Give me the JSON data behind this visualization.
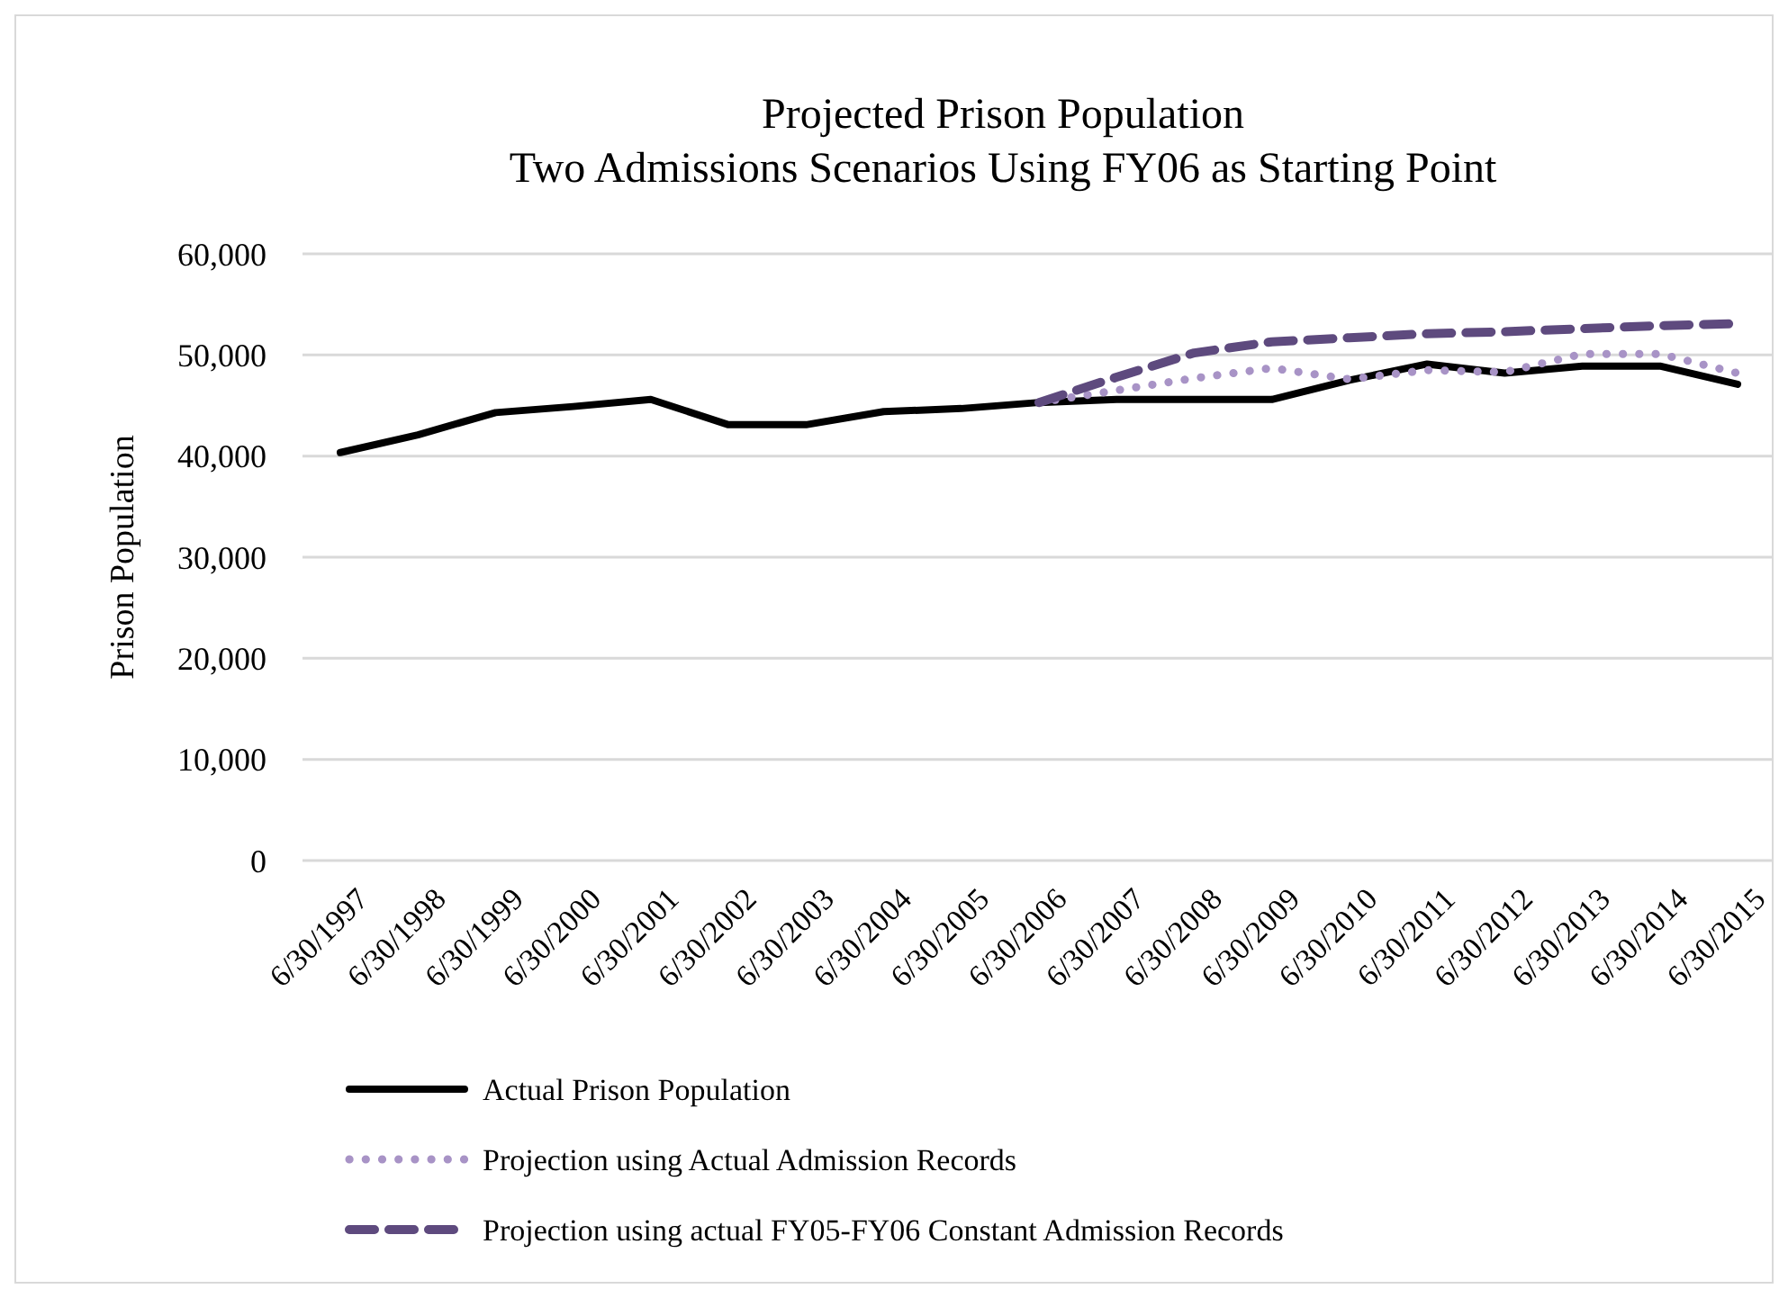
{
  "chart_data": {
    "type": "line",
    "title": "Projected Prison Population",
    "subtitle": "Two Admissions Scenarios Using FY06 as Starting Point",
    "ylabel": "Prison Population",
    "categories": [
      "6/30/1997",
      "6/30/1998",
      "6/30/1999",
      "6/30/2000",
      "6/30/2001",
      "6/30/2002",
      "6/30/2003",
      "6/30/2004",
      "6/30/2005",
      "6/30/2006",
      "6/30/2007",
      "6/30/2008",
      "6/30/2009",
      "6/30/2010",
      "6/30/2011",
      "6/30/2012",
      "6/30/2013",
      "6/30/2014",
      "6/30/2015"
    ],
    "series": [
      {
        "name": "Actual Prison Population",
        "color": "#000000",
        "line_style": "solid",
        "values": [
          40350,
          42100,
          44300,
          44900,
          45600,
          43100,
          43100,
          44400,
          44700,
          45300,
          45600,
          45600,
          45600,
          47500,
          49100,
          48200,
          48900,
          48900,
          47100
        ]
      },
      {
        "name": "Projection using Actual Admission Records",
        "color": "#a893c6",
        "line_style": "dotted",
        "values": [
          null,
          null,
          null,
          null,
          null,
          null,
          null,
          null,
          null,
          45300,
          46500,
          47700,
          48700,
          47600,
          48500,
          48300,
          50100,
          50100,
          48200
        ]
      },
      {
        "name": "Projection using actual FY05-FY06 Constant Admission Records",
        "color": "#5e4a7e",
        "line_style": "dashed",
        "values": [
          null,
          null,
          null,
          null,
          null,
          null,
          null,
          null,
          null,
          45300,
          47800,
          50200,
          51300,
          51700,
          52100,
          52300,
          52600,
          52900,
          53100
        ]
      }
    ],
    "ylim": [
      0,
      60000
    ],
    "yticks": [
      {
        "value": 0,
        "label": "0"
      },
      {
        "value": 10000,
        "label": "10,000"
      },
      {
        "value": 20000,
        "label": "20,000"
      },
      {
        "value": 30000,
        "label": "30,000"
      },
      {
        "value": 40000,
        "label": "40,000"
      },
      {
        "value": 50000,
        "label": "50,000"
      },
      {
        "value": 60000,
        "label": "60,000"
      }
    ],
    "grid": "y",
    "legend": "bottom",
    "marker": "none"
  }
}
